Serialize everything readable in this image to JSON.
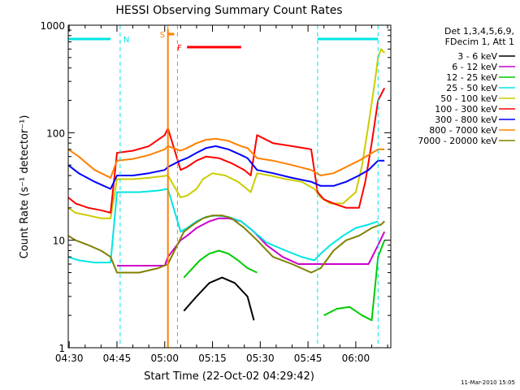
{
  "chart_data": {
    "type": "line",
    "title": "HESSI Observing Summary Count Rates",
    "xlabel": "Start Time (22-Oct-02 04:29:42)",
    "ylabel": "Count Rate (s⁻¹ detector⁻¹)",
    "yscale": "log",
    "ylim": [
      1,
      1000
    ],
    "xlim": [
      "04:29:42",
      "06:11:00"
    ],
    "x_ticks": [
      "04:30",
      "04:45",
      "05:00",
      "05:15",
      "05:30",
      "05:45",
      "06:00"
    ],
    "y_ticks": [
      "1",
      "10",
      "100",
      "1000"
    ],
    "grid": false,
    "legend_position": "right",
    "legend_header": [
      "Det 1,3,4,5,6,9,",
      "FDecim 1, Att 1"
    ],
    "footer_date": "11-Mar-2010 15:05",
    "flag_labels": {
      "n": "N",
      "s": "S",
      "f": "F"
    },
    "flags": {
      "night": [
        [
          "04:29:42",
          "04:43:00"
        ],
        [
          "05:48:00",
          "06:07:00"
        ]
      ],
      "saa": [
        [
          "05:01:00",
          "05:03:00"
        ]
      ],
      "flare": [
        [
          "05:07:00",
          "05:24:00"
        ]
      ],
      "night_boundaries": [
        "04:46:00",
        "05:48:00",
        "06:07:00"
      ],
      "saa_boundaries": [
        "05:01:00",
        "05:04:00"
      ]
    },
    "series": [
      {
        "name": "3 - 6 keV",
        "color": "#000000",
        "x": [
          "04:29:42",
          "04:43:00",
          "05:06:00",
          "05:10:00",
          "05:14:00",
          "05:18:00",
          "05:22:00",
          "05:26:00",
          "05:28:00"
        ],
        "y": [
          null,
          null,
          2.2,
          3.0,
          4.0,
          4.5,
          4.0,
          3.0,
          1.8
        ]
      },
      {
        "name": "6 - 12 keV",
        "color": "#cc00cc",
        "x": [
          "04:29:42",
          "04:34:00",
          "04:40:00",
          "04:43:00",
          "04:45:00",
          "04:52:00",
          "05:00:00",
          "05:01:00",
          "05:05:00",
          "05:07:00",
          "05:10:00",
          "05:14:00",
          "05:17:00",
          "05:20:00",
          "05:24:00",
          "05:28:00",
          "05:32:00",
          "05:37:00",
          "05:42:00",
          "05:47:00",
          "05:49:00",
          "05:52:00",
          "05:56:00",
          "06:00:00",
          "06:04:00",
          "06:07:00",
          "06:09:00"
        ],
        "y": [
          null,
          null,
          null,
          null,
          5.8,
          5.8,
          5.8,
          7.0,
          10,
          11,
          13,
          15,
          16,
          16,
          15,
          12,
          9,
          7,
          6,
          6,
          6,
          6,
          6,
          6,
          6,
          9,
          12
        ]
      },
      {
        "name": "12 - 25 keV",
        "color": "#00cc00",
        "x": [
          "04:29:42",
          "04:43:00",
          "05:06:00",
          "05:08:00",
          "05:11:00",
          "05:14:00",
          "05:17:00",
          "05:20:00",
          "05:23:00",
          "05:26:00",
          "05:29:00",
          "05:48:00",
          "05:50:00",
          "05:54:00",
          "05:58:00",
          "06:02:00",
          "06:05:00",
          "06:07:00",
          "06:09:00"
        ],
        "y": [
          null,
          null,
          4.5,
          5.2,
          6.5,
          7.5,
          8.0,
          7.5,
          6.5,
          5.5,
          5.0,
          null,
          2.0,
          2.3,
          2.4,
          2.0,
          1.8,
          7.0,
          10
        ]
      },
      {
        "name": "25 - 50 keV",
        "color": "#00e5e5",
        "x": [
          "04:29:42",
          "04:33:00",
          "04:38:00",
          "04:43:00",
          "04:45:00",
          "04:52:00",
          "04:58:00",
          "05:01:00",
          "05:05:00",
          "05:07:00",
          "05:10:00",
          "05:13:00",
          "05:16:00",
          "05:20:00",
          "05:24:00",
          "05:28:00",
          "05:32:00",
          "05:38:00",
          "05:43:00",
          "05:47:00",
          "05:49:00",
          "05:52:00",
          "05:56:00",
          "06:00:00",
          "06:04:00",
          "06:07:00"
        ],
        "y": [
          7.0,
          6.5,
          6.2,
          6.2,
          28,
          28,
          29,
          30,
          12,
          13,
          15,
          16.5,
          17,
          16.5,
          15,
          12,
          9.5,
          8,
          7,
          6.5,
          7.5,
          9,
          11,
          13,
          14,
          15
        ]
      },
      {
        "name": "50 - 100 keV",
        "color": "#cccc00",
        "x": [
          "04:29:42",
          "04:32:00",
          "04:36:00",
          "04:40:00",
          "04:43:00",
          "04:45:00",
          "04:50:00",
          "04:55:00",
          "05:01:00",
          "05:05:00",
          "05:07:00",
          "05:10:00",
          "05:12:00",
          "05:15:00",
          "05:19:00",
          "05:23:00",
          "05:27:00",
          "05:29:00",
          "05:33:00",
          "05:38:00",
          "05:43:00",
          "05:47:00",
          "05:49:00",
          "05:52:00",
          "05:56:00",
          "06:00:00",
          "06:02:00",
          "06:04:00",
          "06:06:00",
          "06:07:00",
          "06:08:00",
          "06:09:00"
        ],
        "y": [
          20,
          18,
          17,
          16,
          16,
          37,
          37,
          38,
          40,
          25,
          26,
          30,
          37,
          42,
          40,
          35,
          28,
          42,
          40,
          37,
          35,
          30,
          25,
          22,
          22,
          28,
          50,
          120,
          300,
          500,
          600,
          550
        ]
      },
      {
        "name": "100 - 300 keV",
        "color": "#ff0000",
        "x": [
          "04:29:42",
          "04:32:00",
          "04:36:00",
          "04:40:00",
          "04:43:00",
          "04:45:00",
          "04:50:00",
          "04:55:00",
          "05:00:00",
          "05:01:00",
          "05:05:00",
          "05:07:00",
          "05:10:00",
          "05:13:00",
          "05:17:00",
          "05:21:00",
          "05:25:00",
          "05:27:00",
          "05:29:00",
          "05:34:00",
          "05:40:00",
          "05:46:00",
          "05:48:00",
          "05:50:00",
          "05:53:00",
          "05:57:00",
          "06:01:00",
          "06:03:00",
          "06:05:00",
          "06:07:00",
          "06:09:00"
        ],
        "y": [
          25,
          22,
          20,
          19,
          18,
          65,
          68,
          75,
          95,
          110,
          45,
          48,
          55,
          60,
          58,
          52,
          45,
          40,
          95,
          80,
          75,
          70,
          28,
          24,
          22,
          20,
          20,
          35,
          80,
          200,
          260
        ]
      },
      {
        "name": "300 - 800 keV",
        "color": "#0000ff",
        "x": [
          "04:29:42",
          "04:33:00",
          "04:38:00",
          "04:43:00",
          "04:45:00",
          "04:50:00",
          "04:55:00",
          "05:00:00",
          "05:01:00",
          "05:05:00",
          "05:07:00",
          "05:10:00",
          "05:13:00",
          "05:16:00",
          "05:20:00",
          "05:24:00",
          "05:26:00",
          "05:29:00",
          "05:34:00",
          "05:40:00",
          "05:46:00",
          "05:49:00",
          "05:53:00",
          "05:57:00",
          "06:01:00",
          "06:04:00",
          "06:07:00",
          "06:09:00"
        ],
        "y": [
          50,
          42,
          35,
          30,
          40,
          40,
          42,
          45,
          48,
          55,
          58,
          65,
          72,
          75,
          70,
          62,
          58,
          45,
          42,
          38,
          35,
          32,
          32,
          35,
          40,
          45,
          55,
          55
        ]
      },
      {
        "name": "800 - 7000 keV",
        "color": "#ff8000",
        "x": [
          "04:29:42",
          "04:33:00",
          "04:38:00",
          "04:43:00",
          "04:45:00",
          "04:50:00",
          "04:55:00",
          "05:00:00",
          "05:01:00",
          "05:05:00",
          "05:07:00",
          "05:10:00",
          "05:13:00",
          "05:16:00",
          "05:20:00",
          "05:24:00",
          "05:26:00",
          "05:29:00",
          "05:34:00",
          "05:40:00",
          "05:46:00",
          "05:49:00",
          "05:53:00",
          "05:57:00",
          "06:01:00",
          "06:04:00",
          "06:07:00",
          "06:09:00"
        ],
        "y": [
          70,
          60,
          45,
          38,
          55,
          57,
          62,
          70,
          75,
          68,
          72,
          80,
          86,
          88,
          84,
          75,
          72,
          58,
          55,
          50,
          45,
          40,
          42,
          48,
          55,
          62,
          70,
          70
        ]
      },
      {
        "name": "7000 - 20000 keV",
        "color": "#808000",
        "x": [
          "04:29:42",
          "04:32:00",
          "04:36:00",
          "04:40:00",
          "04:43:00",
          "04:45:00",
          "04:52:00",
          "04:58:00",
          "05:01:00",
          "05:06:00",
          "05:09:00",
          "05:12:00",
          "05:15:00",
          "05:18:00",
          "05:21:00",
          "05:25:00",
          "05:29:00",
          "05:34:00",
          "05:40:00",
          "05:46:00",
          "05:49:00",
          "05:53:00",
          "05:57:00",
          "06:01:00",
          "06:05:00",
          "06:08:00",
          "06:09:00"
        ],
        "y": [
          11,
          10,
          9,
          8,
          7,
          5,
          5,
          5.5,
          6,
          12,
          14,
          16,
          17,
          17,
          16,
          13,
          10,
          7,
          6,
          5,
          5.5,
          8,
          10,
          11,
          13,
          14,
          15
        ]
      }
    ]
  }
}
